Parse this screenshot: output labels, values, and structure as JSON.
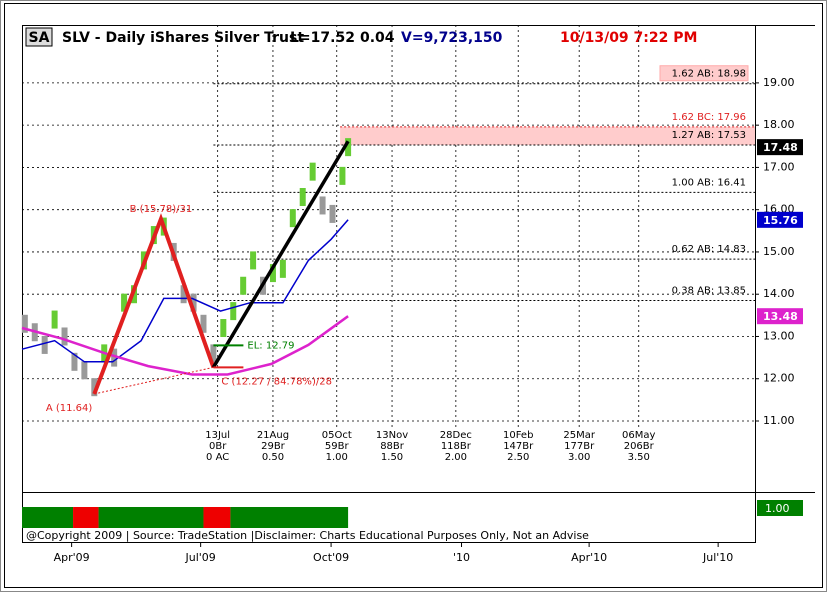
{
  "chart_data": {
    "type": "bar",
    "symbol": "SA",
    "title": "SLV - Daily  iShares Silver Trust",
    "last": "L=17.52",
    "change": "0.04",
    "volume": "V=9,723,150",
    "timestamp": "10/13/09 7:22 PM",
    "xlim": [
      "2009-02-25",
      "2010-07-27"
    ],
    "ylim": [
      9.32,
      20.37
    ],
    "yticks": [
      {
        "value": 19,
        "label": "19.00"
      },
      {
        "value": 18,
        "label": "18.00"
      },
      {
        "value": 17,
        "label": "17.00"
      },
      {
        "value": 16,
        "label": "16.00"
      },
      {
        "value": 15,
        "label": "15.00"
      },
      {
        "value": 14,
        "label": "14.00"
      },
      {
        "value": 13,
        "label": "13.00"
      },
      {
        "value": 12,
        "label": "12.00"
      },
      {
        "value": 11,
        "label": "11.00"
      }
    ],
    "xticks": [
      {
        "value": "2009-04",
        "label": "Apr'09"
      },
      {
        "value": "2009-07",
        "label": "Jul'09"
      },
      {
        "value": "2009-10",
        "label": "Oct'09"
      },
      {
        "value": "2010-01",
        "label": "'10"
      },
      {
        "value": "2010-04",
        "label": "Apr'10"
      },
      {
        "value": "2010-07",
        "label": "Jul'10"
      }
    ],
    "grid": true,
    "price": {
      "up_color": "#66cc33",
      "down_color": "#999999",
      "last_label": "17.48",
      "x": [
        "2009-02-27",
        "2009-03-06",
        "2009-03-13",
        "2009-03-20",
        "2009-03-27",
        "2009-04-03",
        "2009-04-10",
        "2009-04-17",
        "2009-04-24",
        "2009-05-01",
        "2009-05-08",
        "2009-05-15",
        "2009-05-22",
        "2009-05-29",
        "2009-06-05",
        "2009-06-12",
        "2009-06-19",
        "2009-06-26",
        "2009-07-03",
        "2009-07-10",
        "2009-07-17",
        "2009-07-24",
        "2009-07-31",
        "2009-08-07",
        "2009-08-14",
        "2009-08-21",
        "2009-08-28",
        "2009-09-04",
        "2009-09-11",
        "2009-09-18",
        "2009-09-25",
        "2009-10-02",
        "2009-10-09",
        "2009-10-13"
      ],
      "values": [
        13.3,
        13.1,
        12.8,
        13.4,
        13.0,
        12.4,
        12.2,
        11.8,
        12.6,
        12.5,
        13.8,
        14.0,
        14.8,
        15.4,
        15.6,
        15.0,
        14.0,
        13.8,
        13.3,
        12.6,
        13.2,
        13.6,
        14.2,
        14.8,
        14.2,
        14.5,
        14.6,
        15.8,
        16.3,
        16.9,
        16.1,
        15.9,
        16.8,
        17.48
      ]
    },
    "series": [
      {
        "color": "#0000cc",
        "last_label": "15.76",
        "x": [
          "2009-02-25",
          "2009-03-20",
          "2009-04-10",
          "2009-04-30",
          "2009-05-20",
          "2009-06-05",
          "2009-06-25",
          "2009-07-15",
          "2009-08-05",
          "2009-08-28",
          "2009-09-15",
          "2009-10-01",
          "2009-10-13"
        ],
        "values": [
          12.7,
          12.9,
          12.4,
          12.4,
          12.9,
          13.9,
          13.9,
          13.6,
          13.8,
          13.8,
          14.8,
          15.3,
          15.76
        ]
      },
      {
        "color": "#dd22cc",
        "last_label": "13.48",
        "x": [
          "2009-02-25",
          "2009-03-25",
          "2009-04-25",
          "2009-05-25",
          "2009-06-25",
          "2009-07-20",
          "2009-08-20",
          "2009-09-15",
          "2009-10-13"
        ],
        "values": [
          13.2,
          12.95,
          12.6,
          12.3,
          12.1,
          12.1,
          12.35,
          12.8,
          13.48
        ]
      }
    ],
    "pattern": {
      "color": "#e02020",
      "points": [
        {
          "label": "A (11.64)",
          "date": "2009-04-17",
          "value": 11.64
        },
        {
          "label": "B (15.78)/31",
          "date": "2009-06-03",
          "value": 15.78
        },
        {
          "label": "C (12.27 / 84.78%)/28",
          "date": "2009-07-10",
          "value": 12.27
        }
      ],
      "projection": {
        "date": "2009-10-13",
        "value": 17.62
      },
      "entry": {
        "label": "EL: 12.79",
        "value": 12.79
      }
    },
    "levels": [
      {
        "label": "1.62 AB: 18.98",
        "value": 18.98
      },
      {
        "label": "1.62 BC: 17.96",
        "value": 17.96
      },
      {
        "label": "1.27 AB: 17.53",
        "value": 17.53
      },
      {
        "label": "1.00 AB: 16.41",
        "value": 16.41
      },
      {
        "label": "0.62 AB: 14.83",
        "value": 14.83
      },
      {
        "label": "0.38 AB: 13.85",
        "value": 13.85
      }
    ],
    "time_levels": [
      {
        "date": "2009-07-13",
        "lines": [
          "13Jul",
          "0Br",
          "0 AC"
        ]
      },
      {
        "date": "2009-08-21",
        "lines": [
          "21Aug",
          "29Br",
          "0.50"
        ]
      },
      {
        "date": "2009-10-05",
        "lines": [
          "05Oct",
          "59Br",
          "1.00"
        ]
      },
      {
        "date": "2009-11-13",
        "lines": [
          "13Nov",
          "88Br",
          "1.50"
        ]
      },
      {
        "date": "2009-12-28",
        "lines": [
          "28Dec",
          "118Br",
          "2.00"
        ]
      },
      {
        "date": "2010-02-10",
        "lines": [
          "10Feb",
          "147Br",
          "2.50"
        ]
      },
      {
        "date": "2010-03-25",
        "lines": [
          "25Mar",
          "177Br",
          "3.00"
        ]
      },
      {
        "date": "2010-05-06",
        "lines": [
          "06May",
          "206Br",
          "3.50"
        ]
      }
    ],
    "indicator": {
      "value": 1,
      "label": "1.00",
      "segments": [
        {
          "from": "2009-02-25",
          "to": "2009-04-02",
          "color": "#008000"
        },
        {
          "from": "2009-04-02",
          "to": "2009-04-20",
          "color": "#ee0000"
        },
        {
          "from": "2009-04-20",
          "to": "2009-07-03",
          "color": "#008000"
        },
        {
          "from": "2009-07-03",
          "to": "2009-07-22",
          "color": "#ee0000"
        },
        {
          "from": "2009-07-22",
          "to": "2009-10-13",
          "color": "#008000"
        }
      ]
    },
    "footer": "@Copyright 2009 | Source: TradeStation |Disclaimer: Charts Educational Purposes Only, Not an Advise"
  }
}
